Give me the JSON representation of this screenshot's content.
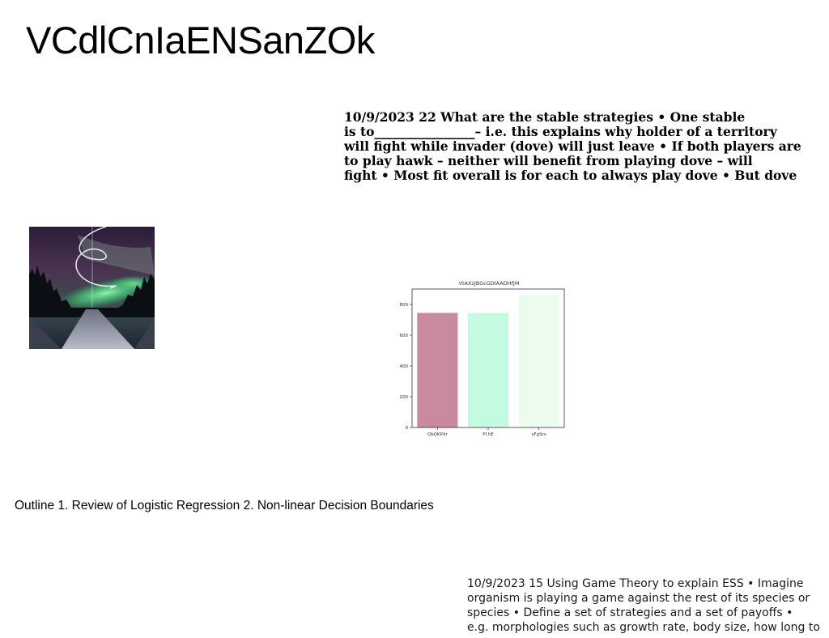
{
  "slide": {
    "title": "VCdlCnIaENSanZOk"
  },
  "bold_text": {
    "lines": [
      "10/9/2023 22 What are the stable strategies • One stable",
      "is to________________– i.e. this explains why holder of a territory",
      "will fight while invader (dove) will just leave • If both players are",
      "to play hawk – neither will benefit from playing dove – will",
      "fight • Most fit overall is for each to always play dove • But dove"
    ]
  },
  "photo": {
    "subject": "aurora borealis over forest road with light trail"
  },
  "chart_data": {
    "type": "bar",
    "title": "VtAXzJBGcGDIAADHfJM",
    "categories": [
      "QbOKPdr",
      "Pl hE",
      "sFgSrs"
    ],
    "values": [
      745,
      745,
      862
    ],
    "colors": [
      "#c98aa0",
      "#c4fbe0",
      "#ebfcef"
    ],
    "yticks": [
      0,
      200,
      400,
      600,
      800
    ],
    "ylim": [
      0,
      900
    ],
    "xlabel": "",
    "ylabel": "",
    "grid": false
  },
  "outline": {
    "text": "Outline 1. Review of Logistic Regression 2. Non-linear Decision Boundaries"
  },
  "plain_text": {
    "lines": [
      "10/9/2023 15 Using Game Theory to explain ESS • Imagine",
      "organism is playing a game against the rest of its species or",
      "species • Define a set of strategies and a set of payoffs •",
      "e.g. morphologies such as growth rate, body size, how long to"
    ]
  }
}
